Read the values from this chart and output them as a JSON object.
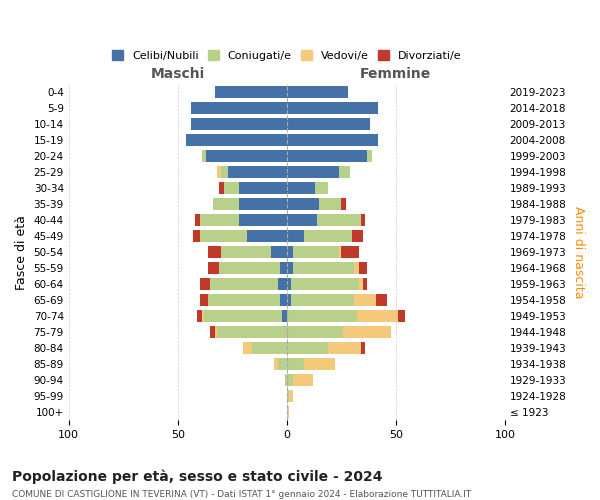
{
  "age_groups": [
    "100+",
    "95-99",
    "90-94",
    "85-89",
    "80-84",
    "75-79",
    "70-74",
    "65-69",
    "60-64",
    "55-59",
    "50-54",
    "45-49",
    "40-44",
    "35-39",
    "30-34",
    "25-29",
    "20-24",
    "15-19",
    "10-14",
    "5-9",
    "0-4"
  ],
  "birth_years": [
    "≤ 1923",
    "1924-1928",
    "1929-1933",
    "1934-1938",
    "1939-1943",
    "1944-1948",
    "1949-1953",
    "1954-1958",
    "1959-1963",
    "1964-1968",
    "1969-1973",
    "1974-1978",
    "1979-1983",
    "1984-1988",
    "1989-1993",
    "1994-1998",
    "1999-2003",
    "2004-2008",
    "2009-2013",
    "2014-2018",
    "2019-2023"
  ],
  "males": {
    "celibi": [
      0,
      0,
      0,
      0,
      0,
      0,
      2,
      3,
      4,
      3,
      7,
      18,
      22,
      22,
      22,
      27,
      37,
      46,
      44,
      44,
      33
    ],
    "coniugati": [
      0,
      0,
      1,
      4,
      16,
      32,
      36,
      33,
      31,
      28,
      23,
      22,
      18,
      12,
      7,
      3,
      2,
      0,
      0,
      0,
      0
    ],
    "vedovi": [
      0,
      0,
      0,
      2,
      4,
      1,
      1,
      0,
      0,
      0,
      0,
      0,
      0,
      0,
      0,
      2,
      0,
      0,
      0,
      0,
      0
    ],
    "divorziati": [
      0,
      0,
      0,
      0,
      0,
      2,
      2,
      4,
      5,
      5,
      6,
      3,
      2,
      0,
      2,
      0,
      0,
      0,
      0,
      0,
      0
    ]
  },
  "females": {
    "nubili": [
      0,
      0,
      0,
      0,
      0,
      0,
      0,
      2,
      2,
      3,
      3,
      8,
      14,
      15,
      13,
      24,
      37,
      42,
      38,
      42,
      28
    ],
    "coniugate": [
      0,
      1,
      3,
      8,
      19,
      26,
      32,
      29,
      31,
      28,
      21,
      22,
      20,
      10,
      6,
      5,
      2,
      0,
      0,
      0,
      0
    ],
    "vedove": [
      1,
      2,
      9,
      14,
      15,
      22,
      19,
      10,
      2,
      2,
      1,
      0,
      0,
      0,
      0,
      0,
      0,
      0,
      0,
      0,
      0
    ],
    "divorziate": [
      0,
      0,
      0,
      0,
      2,
      0,
      3,
      5,
      2,
      4,
      8,
      5,
      2,
      2,
      0,
      0,
      0,
      0,
      0,
      0,
      0
    ]
  },
  "colors": {
    "celibi": "#4472a8",
    "coniugati": "#b8d08a",
    "vedovi": "#f5c97a",
    "divorziati": "#c0392b"
  },
  "legend_labels": [
    "Celibi/Nubili",
    "Coniugati/e",
    "Vedovi/e",
    "Divorziati/e"
  ],
  "xlim": 100,
  "title": "Popolazione per età, sesso e stato civile - 2024",
  "subtitle": "COMUNE DI CASTIGLIONE IN TEVERINA (VT) - Dati ISTAT 1° gennaio 2024 - Elaborazione TUTTITALIA.IT",
  "ylabel_left": "Fasce di età",
  "ylabel_right": "Anni di nascita",
  "xlabel_males": "Maschi",
  "xlabel_females": "Femmine",
  "bg_color": "#ffffff",
  "grid_color": "#cccccc"
}
